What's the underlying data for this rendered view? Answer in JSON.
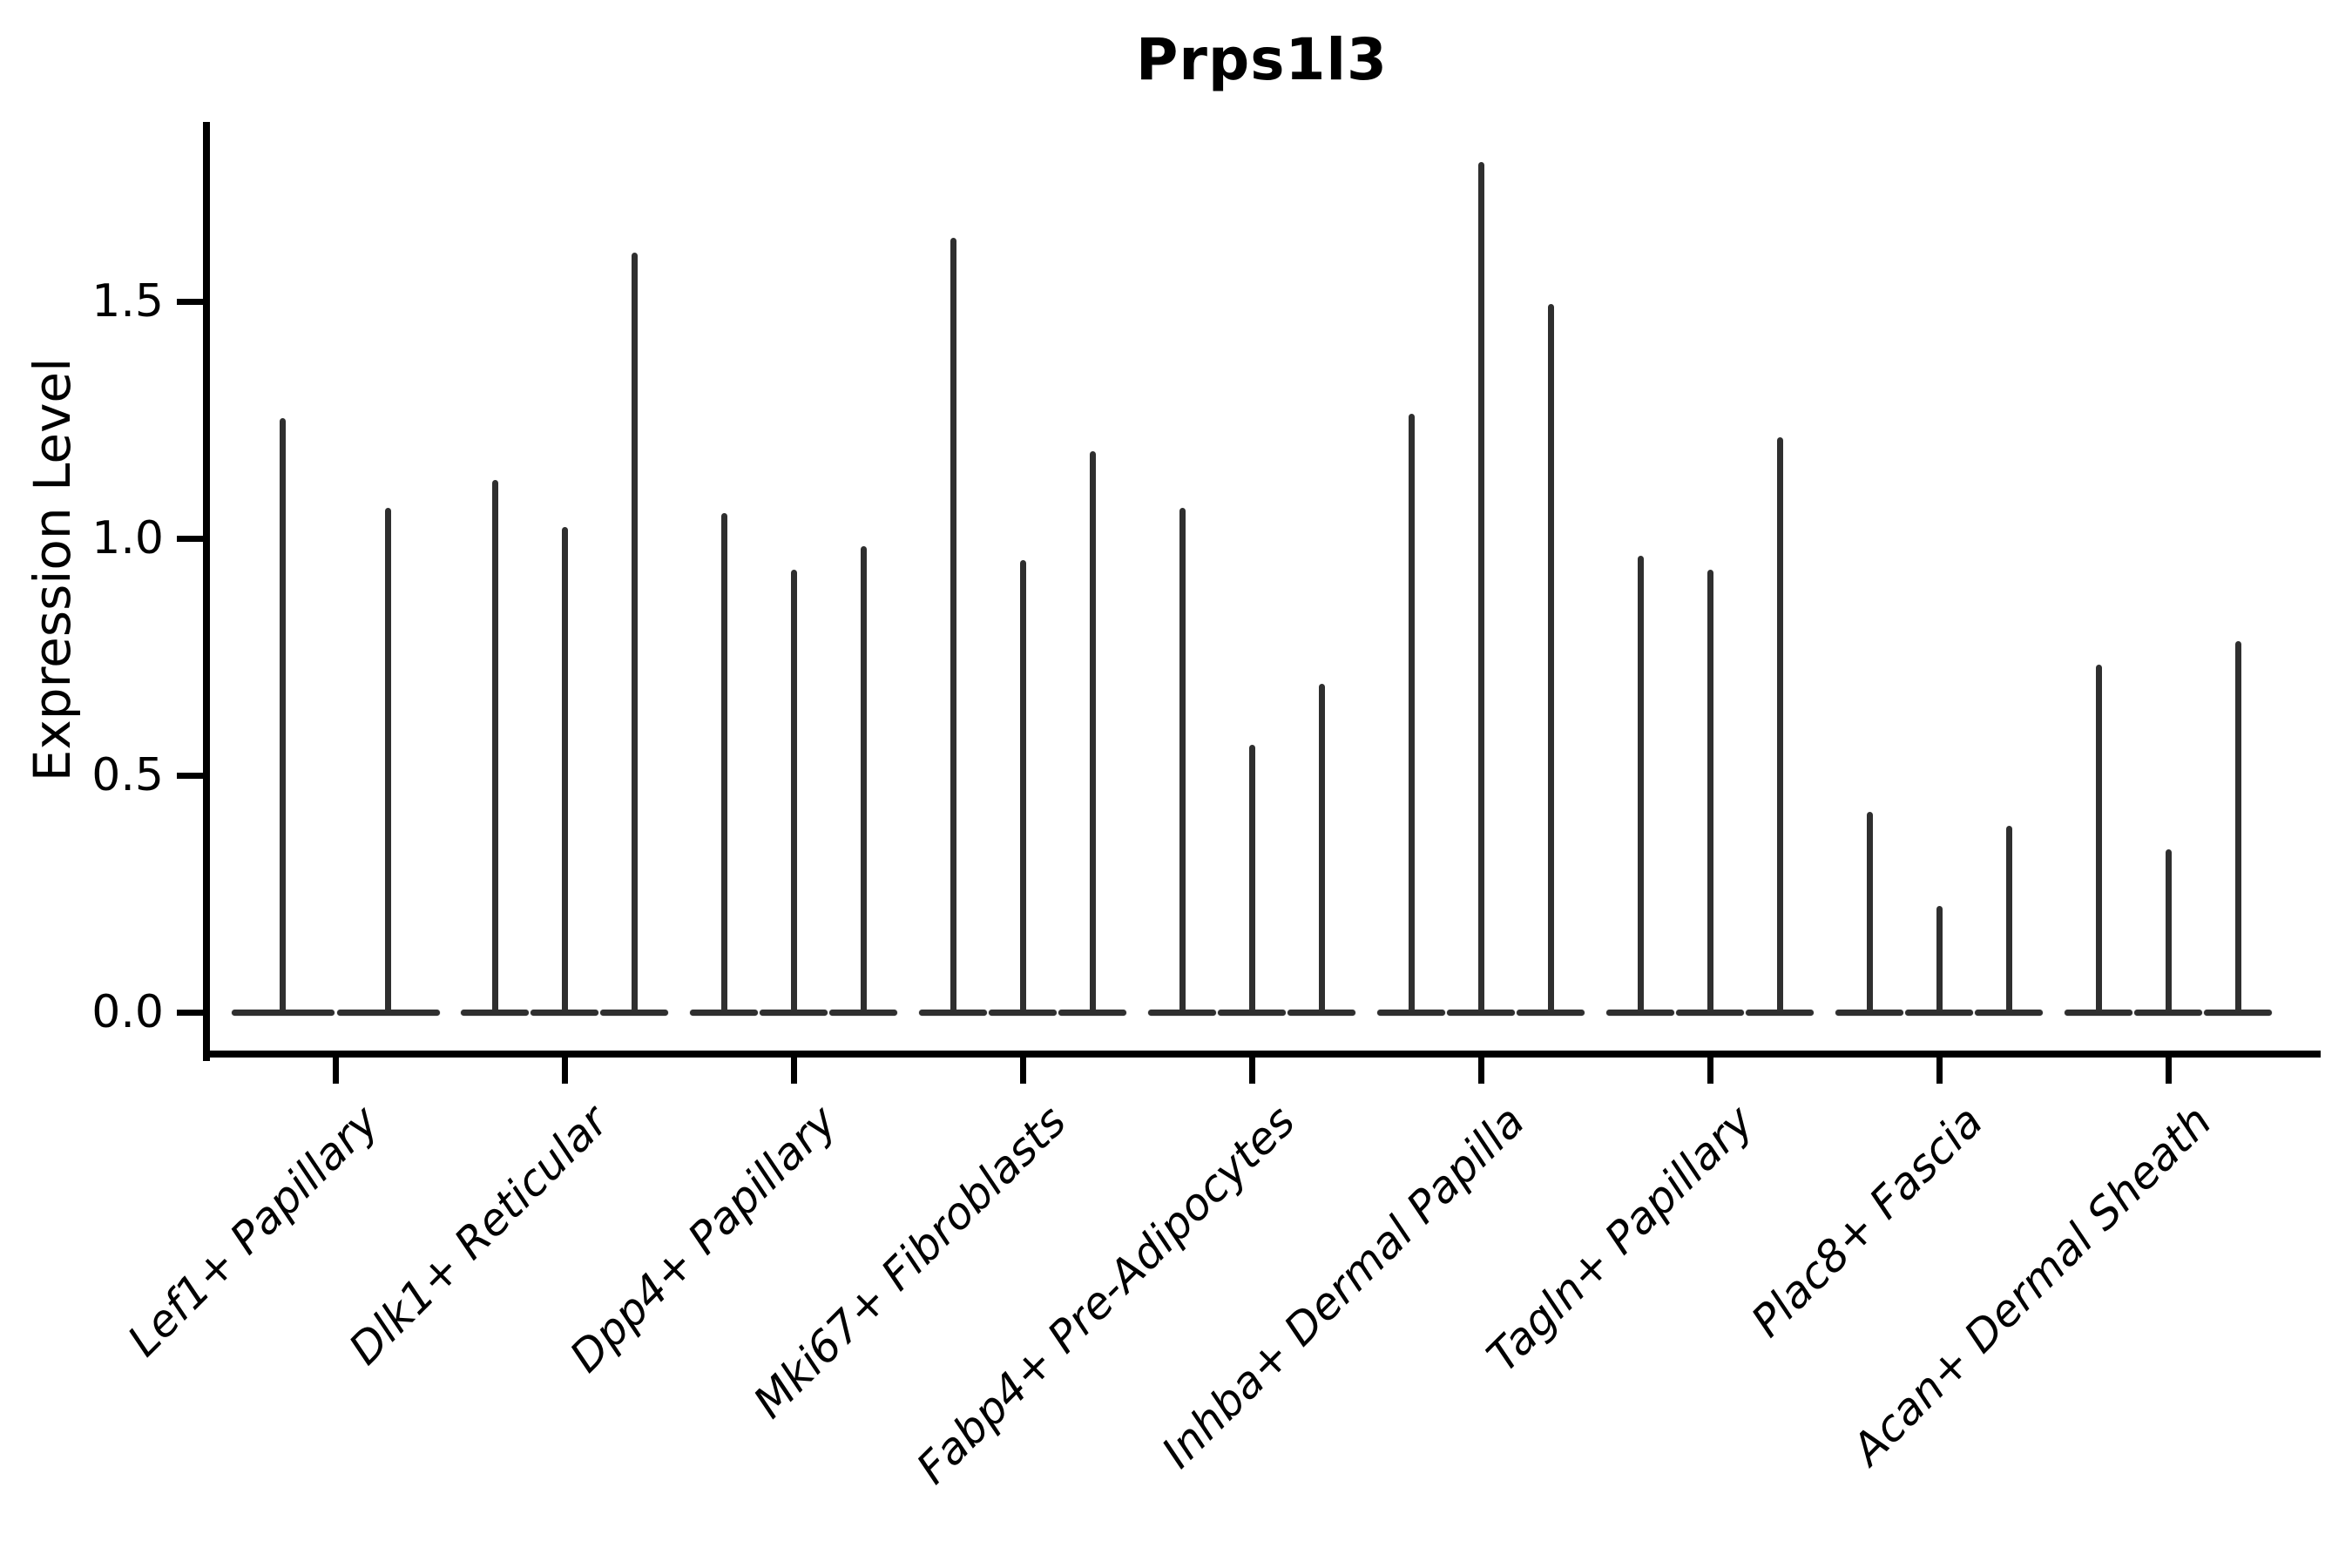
{
  "chart_data": {
    "type": "violin",
    "title": "Prps1l3",
    "ylabel": "Expression Level",
    "xlabel": "",
    "yticks": [
      0.0,
      0.5,
      1.0,
      1.5
    ],
    "ytick_labels": [
      "0.0",
      "0.5",
      "1.0",
      "1.5"
    ],
    "ylim": [
      -0.09,
      1.88
    ],
    "grid": false,
    "legend": "none",
    "style_note": "narrow spike-like violins; flat body at 0 with thin vertical line up to max expression",
    "categories": [
      "Lef1+ Papillary",
      "Dlk1+ Reticular",
      "Dpp4+ Papillary",
      "Mki67+ Fibroblasts",
      "Fabp4+ Pre-Adipocytes",
      "Inhba+ Dermal Papilla",
      "Tagln+ Papillary",
      "Plac8+ Fascia",
      "Acan+ Dermal Sheath"
    ],
    "groups": [
      {
        "category": "Lef1+ Papillary",
        "spike_heights": [
          1.25,
          1.06
        ]
      },
      {
        "category": "Dlk1+ Reticular",
        "spike_heights": [
          1.12,
          1.02,
          1.6
        ]
      },
      {
        "category": "Dpp4+ Papillary",
        "spike_heights": [
          1.05,
          0.93,
          0.98
        ]
      },
      {
        "category": "Mki67+ Fibroblasts",
        "spike_heights": [
          1.63,
          0.95,
          1.18
        ]
      },
      {
        "category": "Fabp4+ Pre-Adipocytes",
        "spike_heights": [
          1.06,
          0.56,
          0.69
        ]
      },
      {
        "category": "Inhba+ Dermal Papilla",
        "spike_heights": [
          1.26,
          1.79,
          1.49
        ]
      },
      {
        "category": "Tagln+ Papillary",
        "spike_heights": [
          0.96,
          0.93,
          1.21
        ]
      },
      {
        "category": "Plac8+ Fascia",
        "spike_heights": [
          0.42,
          0.22,
          0.39
        ]
      },
      {
        "category": "Acan+ Dermal Sheath",
        "spike_heights": [
          0.73,
          0.34,
          0.78
        ]
      }
    ],
    "colors": {
      "spike": "#2f2f2f",
      "axis": "#000000",
      "text": "#000000",
      "background": "#ffffff"
    }
  }
}
